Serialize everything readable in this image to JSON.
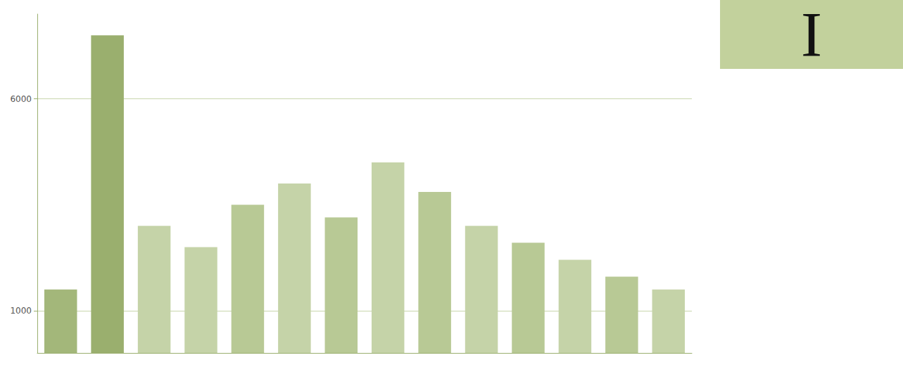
{
  "chart_data": {
    "type": "bar",
    "title": "I",
    "categories": [
      null,
      null,
      null,
      null,
      null,
      null,
      null,
      null,
      null,
      null,
      null,
      null,
      null,
      null
    ],
    "values": [
      1500,
      7500,
      3000,
      2500,
      3500,
      4000,
      3200,
      4500,
      3800,
      3000,
      2600,
      2200,
      1800,
      1500
    ],
    "colors": [
      "#a3b77a",
      "#9aaf6e",
      "#c5d3a8",
      "#c5d3a8",
      "#b8c995",
      "#c5d3a8",
      "#b8c995",
      "#c5d3a8",
      "#b8c995",
      "#c5d3a8",
      "#b8c995",
      "#c5d3a8",
      "#b8c995",
      "#c5d3a8"
    ],
    "ylim": [
      0,
      8000
    ],
    "yticks": [
      1000,
      6000
    ],
    "grid": true,
    "tick_labels": "y"
  }
}
